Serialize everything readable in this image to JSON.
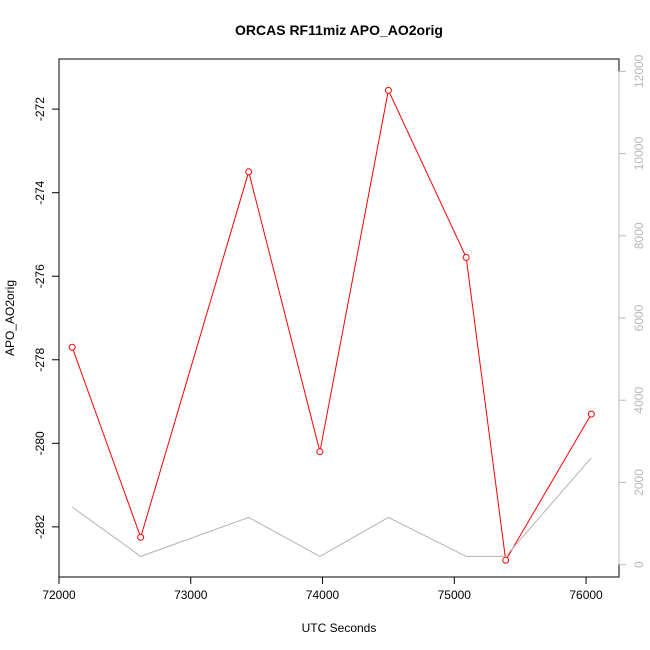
{
  "chart_data": {
    "type": "line",
    "title": "ORCAS RF11miz APO_AO2orig",
    "xlabel": "UTC Seconds",
    "ylabel": "APO_AO2orig",
    "y2label": "",
    "xlim": [
      72000,
      76250
    ],
    "ylim": [
      -283.2,
      -270.8
    ],
    "y2lim": [
      -300,
      12300
    ],
    "x_ticks": [
      72000,
      73000,
      74000,
      75000,
      76000
    ],
    "y_ticks": [
      -282,
      -280,
      -278,
      -276,
      -274,
      -272
    ],
    "y2_ticks": [
      0,
      2000,
      4000,
      6000,
      8000,
      10000,
      12000
    ],
    "grid": false,
    "series": [
      {
        "axis": "left",
        "color": "#ff0000",
        "markers": true,
        "x": [
          72100,
          72620,
          73440,
          73980,
          74500,
          75090,
          75390,
          76040
        ],
        "y": [
          -277.7,
          -282.25,
          -273.5,
          -280.2,
          -271.55,
          -275.55,
          -282.8,
          -279.3
        ]
      },
      {
        "axis": "right",
        "color": "#b3b3b3",
        "markers": false,
        "x": [
          72100,
          72620,
          73440,
          73980,
          74500,
          75090,
          75390,
          76040
        ],
        "y": [
          1400,
          200,
          1150,
          200,
          1150,
          200,
          200,
          2600
        ]
      }
    ]
  }
}
